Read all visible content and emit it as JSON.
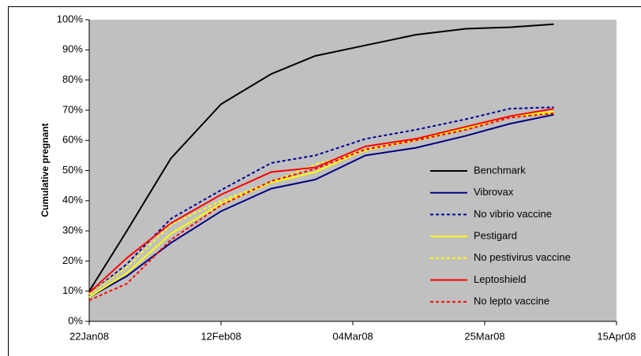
{
  "chart_data": {
    "type": "line",
    "y_label": "Cumulative pregnant",
    "x": [
      "2008-01-22",
      "2008-01-28",
      "2008-02-04",
      "2008-02-12",
      "2008-02-20",
      "2008-02-27",
      "2008-03-06",
      "2008-03-14",
      "2008-03-22",
      "2008-03-29",
      "2008-04-05"
    ],
    "xlim": [
      "2008-01-22",
      "2008-04-15"
    ],
    "xticks": [
      {
        "value": "2008-01-22",
        "label": "22Jan08"
      },
      {
        "value": "2008-02-12",
        "label": "12Feb08"
      },
      {
        "value": "2008-03-04",
        "label": "04Mar08"
      },
      {
        "value": "2008-03-25",
        "label": "25Mar08"
      },
      {
        "value": "2008-04-15",
        "label": "15Apr08"
      }
    ],
    "ylim": [
      0,
      100
    ],
    "yticks": [
      {
        "value": 0,
        "label": "0%"
      },
      {
        "value": 10,
        "label": "10%"
      },
      {
        "value": 20,
        "label": "20%"
      },
      {
        "value": 30,
        "label": "30%"
      },
      {
        "value": 40,
        "label": "40%"
      },
      {
        "value": 50,
        "label": "50%"
      },
      {
        "value": 60,
        "label": "60%"
      },
      {
        "value": 70,
        "label": "70%"
      },
      {
        "value": 80,
        "label": "80%"
      },
      {
        "value": 90,
        "label": "90%"
      },
      {
        "value": 100,
        "label": "100%"
      }
    ],
    "series": [
      {
        "name": "Benchmark",
        "color": "#000000",
        "dashed": false,
        "values": [
          10,
          30,
          54,
          72,
          82,
          88,
          91.5,
          95,
          97,
          97.5,
          98.5
        ]
      },
      {
        "name": "Vibrovax",
        "color": "#000080",
        "dashed": false,
        "values": [
          8,
          15,
          26,
          36.5,
          44,
          47,
          55,
          57.5,
          61.5,
          65.5,
          68.5
        ]
      },
      {
        "name": "No vibrio vaccine",
        "color": "#000099",
        "dashed": true,
        "values": [
          9,
          19,
          34,
          43.5,
          52.5,
          55,
          60.5,
          63.5,
          67,
          70.5,
          71
        ]
      },
      {
        "name": "Pestigard",
        "color": "#ffff00",
        "dashed": false,
        "values": [
          8,
          16,
          29,
          39,
          46,
          49.5,
          57,
          60,
          64,
          68,
          69.5
        ]
      },
      {
        "name": "No pestivirus vaccine",
        "color": "#ffff00",
        "dashed": true,
        "values": [
          9,
          18,
          32,
          40,
          46,
          52,
          56.5,
          60.5,
          64,
          68,
          69
        ]
      },
      {
        "name": "Leptoshield",
        "color": "#ff0000",
        "dashed": false,
        "values": [
          9.5,
          21,
          32.5,
          42,
          49.5,
          51,
          58,
          60.5,
          64.5,
          68,
          70.5
        ]
      },
      {
        "name": "No lepto vaccine",
        "color": "#ff0000",
        "dashed": true,
        "values": [
          7,
          12.5,
          27,
          38.5,
          46.5,
          50.5,
          57,
          60,
          63.5,
          67.5,
          69
        ]
      }
    ],
    "plot_background": "#c0c0c0"
  }
}
